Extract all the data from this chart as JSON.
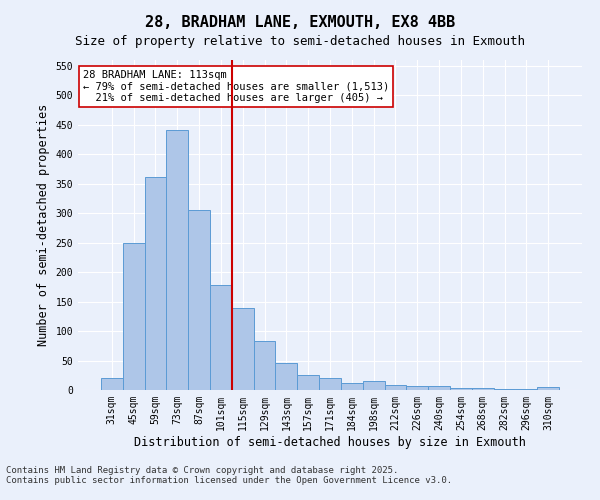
{
  "title_line1": "28, BRADHAM LANE, EXMOUTH, EX8 4BB",
  "title_line2": "Size of property relative to semi-detached houses in Exmouth",
  "xlabel": "Distribution of semi-detached houses by size in Exmouth",
  "ylabel": "Number of semi-detached properties",
  "categories": [
    "31sqm",
    "45sqm",
    "59sqm",
    "73sqm",
    "87sqm",
    "101sqm",
    "115sqm",
    "129sqm",
    "143sqm",
    "157sqm",
    "171sqm",
    "184sqm",
    "198sqm",
    "212sqm",
    "226sqm",
    "240sqm",
    "254sqm",
    "268sqm",
    "282sqm",
    "296sqm",
    "310sqm"
  ],
  "values": [
    20,
    250,
    362,
    442,
    305,
    178,
    140,
    83,
    45,
    26,
    20,
    12,
    16,
    9,
    6,
    6,
    4,
    4,
    2,
    1,
    5
  ],
  "bar_color": "#aec6e8",
  "bar_edge_color": "#5b9bd5",
  "background_color": "#eaf0fb",
  "grid_color": "#ffffff",
  "vline_color": "#cc0000",
  "annotation_line1": "28 BRADHAM LANE: 113sqm",
  "annotation_line2": "← 79% of semi-detached houses are smaller (1,513)",
  "annotation_line3": "  21% of semi-detached houses are larger (405) →",
  "ylim": [
    0,
    560
  ],
  "yticks": [
    0,
    50,
    100,
    150,
    200,
    250,
    300,
    350,
    400,
    450,
    500,
    550
  ],
  "title_fontsize": 11,
  "subtitle_fontsize": 9,
  "tick_fontsize": 7,
  "label_fontsize": 8.5,
  "annotation_fontsize": 7.5,
  "footnote_fontsize": 6.5
}
